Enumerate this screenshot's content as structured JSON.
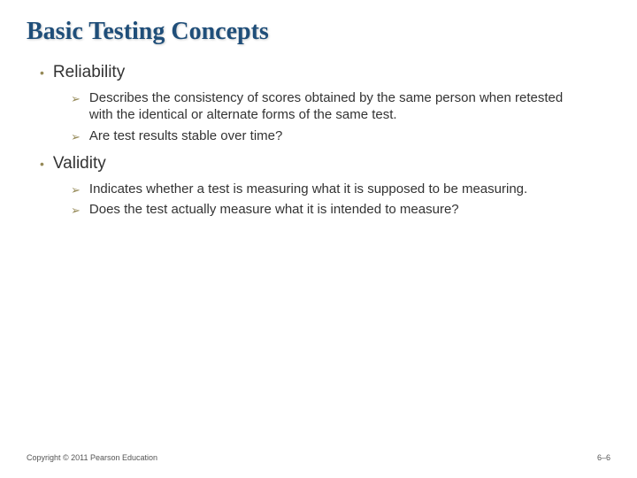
{
  "slide": {
    "title": "Basic Testing Concepts",
    "title_color": "#1f4e79",
    "title_fontsize": 28,
    "title_fontfamily": "Georgia, serif",
    "bullet_marker": "•",
    "bullet_marker_color": "#968a58",
    "sub_marker": "➢",
    "sub_marker_color": "#968a58",
    "background_color": "#ffffff",
    "text_color": "#333333",
    "sections": [
      {
        "heading": "Reliability",
        "heading_fontsize": 19,
        "points": [
          {
            "text": "Describes the consistency of scores obtained by the same person when retested with the identical or alternate forms of the same test.",
            "fontsize": 15
          },
          {
            "text": "Are test results stable over time?",
            "fontsize": 15
          }
        ]
      },
      {
        "heading": "Validity",
        "heading_fontsize": 19,
        "points": [
          {
            "text": "Indicates whether a test is measuring what it is supposed to be measuring.",
            "fontsize": 15
          },
          {
            "text": "Does the test actually measure what it is intended to measure?",
            "fontsize": 15
          }
        ]
      }
    ],
    "footer": {
      "copyright": "Copyright © 2011 Pearson Education",
      "page_number": "6–6",
      "fontsize": 9,
      "color": "#555555"
    }
  }
}
